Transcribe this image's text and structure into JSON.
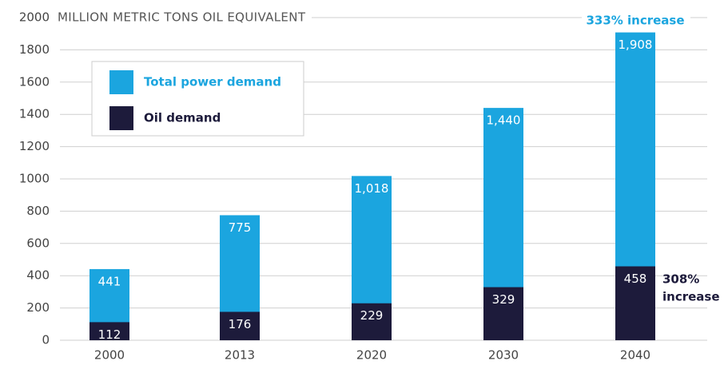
{
  "chart_data": {
    "type": "bar",
    "y_axis_label": "MILLION METRIC TONS OIL EQUIVALENT",
    "categories": [
      "2000",
      "2013",
      "2020",
      "2030",
      "2040"
    ],
    "series": [
      {
        "name": "Total power demand",
        "color": "#1ba5df",
        "values": [
          441,
          775,
          1018,
          1440,
          1908
        ],
        "value_labels": [
          "441",
          "775",
          "1,018",
          "1,440",
          "1,908"
        ]
      },
      {
        "name": "Oil demand",
        "color": "#1d1b3b",
        "values": [
          112,
          176,
          229,
          329,
          458
        ]
      }
    ],
    "annotations": [
      {
        "lines": [
          "333% increase"
        ],
        "color": "#1ba5df"
      },
      {
        "lines": [
          "308%",
          "increase"
        ],
        "color": "#1d1b3b"
      }
    ],
    "ylim": [
      0,
      2000
    ],
    "yticks": [
      0,
      200,
      400,
      600,
      800,
      1000,
      1200,
      1400,
      1600,
      1800,
      2000
    ],
    "grid": true,
    "overlap": true,
    "legend": "upper left"
  }
}
